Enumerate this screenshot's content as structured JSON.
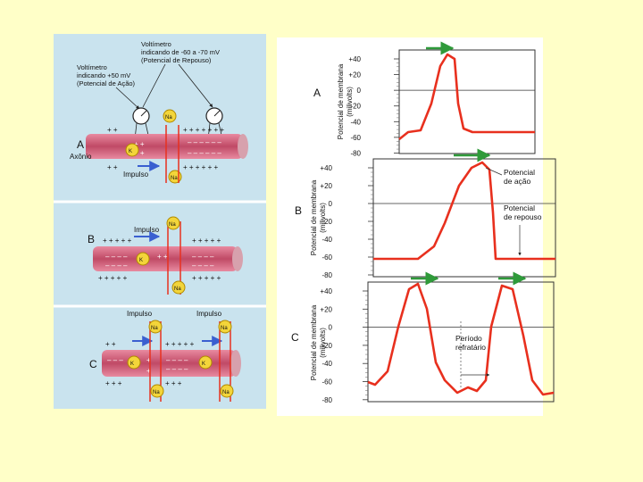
{
  "left_panel": {
    "bg": "#c9e3ee",
    "axon_color": "#c04a66",
    "na_color": "#f3d53a",
    "panel_a": {
      "letter": "A",
      "axon_label": "Axônio",
      "voltmeter_rest_label": [
        "Voltímetro",
        "indicando de -60 a -70 mV",
        "(Potencial de Repouso)"
      ],
      "voltmeter_action_label": [
        "Voltímetro",
        "indicando +50 mV",
        "(Potencial de Ação)"
      ],
      "impulse_label": "Impulso",
      "ion_na": "Na",
      "ion_k": "K"
    },
    "panel_b": {
      "letter": "B",
      "impulse_label": "Impulso",
      "ion_na": "Na",
      "ion_k": "K"
    },
    "panel_c": {
      "letter": "C",
      "impulse_label_1": "Impulso",
      "impulse_label_2": "Impulso",
      "ion_na": "Na",
      "ion_k": "K"
    }
  },
  "right_panel": {
    "bg": "#ffffff",
    "trace_color": "#e8301e",
    "arrow_color": "#2f9a3a",
    "ylabel": [
      "Potencial de membrana",
      "(milivolts)"
    ],
    "graph_a": {
      "letter": "A",
      "ticks": [
        "+40",
        "+20",
        "0",
        "-20",
        "-40",
        "-60",
        "-80"
      ]
    },
    "graph_b": {
      "letter": "B",
      "ticks": [
        "+40",
        "+20",
        "0",
        "- 20",
        "-40",
        "-60",
        "-80"
      ],
      "annotation_action": [
        "Potencial",
        "de ação"
      ],
      "annotation_rest": [
        "Potencial",
        "de repouso"
      ]
    },
    "graph_c": {
      "letter": "C",
      "ticks": [
        "+40",
        "+20",
        "0",
        "-20",
        "-40",
        "-60",
        "-80"
      ],
      "annotation_refractory": [
        "Período",
        "refratário"
      ]
    }
  }
}
